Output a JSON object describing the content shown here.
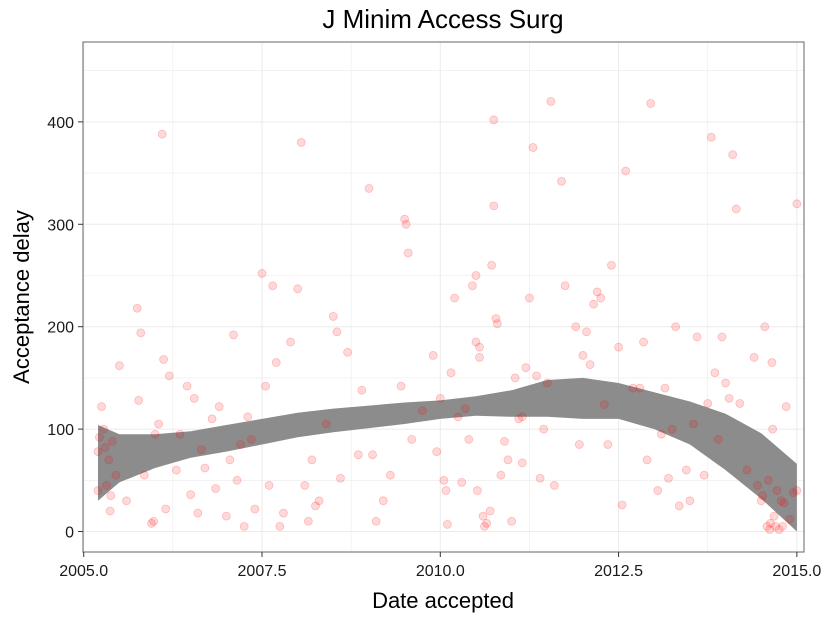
{
  "chart_data": {
    "type": "scatter",
    "title": "J Minim Access Surg",
    "xlabel": "Date accepted",
    "ylabel": "Acceptance delay",
    "xlim": [
      2004.99,
      2015.1
    ],
    "ylim": [
      -20,
      478
    ],
    "x_ticks": [
      2005.0,
      2007.5,
      2010.0,
      2012.5,
      2015.0
    ],
    "x_tick_labels": [
      "2005.0",
      "2007.5",
      "2010.0",
      "2012.5",
      "2015.0"
    ],
    "y_ticks": [
      0,
      100,
      200,
      300,
      400
    ],
    "y_tick_labels": [
      "0",
      "100",
      "200",
      "300",
      "400"
    ],
    "grid": true,
    "legend": "none",
    "colors": {
      "points": "#ff0000",
      "band": "#8c8c8c",
      "grid": "#ebebeb",
      "panel_border": "#7f7f7f",
      "axis_ticks": "#333333"
    },
    "series": [
      {
        "type": "scatter",
        "x": [
          2005.25,
          2005.22,
          2005.3,
          2005.2,
          2005.35,
          2005.28,
          2005.4,
          2005.45,
          2005.32,
          2005.2,
          2005.37,
          2005.5,
          2005.38,
          2005.6,
          2005.75,
          2005.8,
          2005.77,
          2005.85,
          2005.95,
          2005.98,
          2006.0,
          2006.05,
          2006.1,
          2006.12,
          2006.15,
          2006.2,
          2006.3,
          2006.35,
          2006.45,
          2006.5,
          2006.55,
          2006.6,
          2006.65,
          2006.7,
          2006.8,
          2006.85,
          2006.9,
          2007.0,
          2007.05,
          2007.1,
          2007.15,
          2007.2,
          2007.25,
          2007.3,
          2007.35,
          2007.4,
          2007.5,
          2007.55,
          2007.6,
          2007.65,
          2007.7,
          2007.75,
          2007.8,
          2007.9,
          2008.0,
          2008.05,
          2008.1,
          2008.15,
          2008.2,
          2008.25,
          2008.3,
          2008.4,
          2008.5,
          2008.55,
          2008.6,
          2008.7,
          2008.85,
          2008.9,
          2009.0,
          2009.05,
          2009.1,
          2009.2,
          2009.3,
          2009.45,
          2009.5,
          2009.52,
          2009.55,
          2009.6,
          2009.75,
          2009.9,
          2009.95,
          2010.0,
          2010.05,
          2010.08,
          2010.1,
          2010.15,
          2010.2,
          2010.25,
          2010.3,
          2010.35,
          2010.4,
          2010.45,
          2010.5,
          2010.5,
          2010.52,
          2010.55,
          2010.55,
          2010.6,
          2010.62,
          2010.65,
          2010.7,
          2010.72,
          2010.75,
          2010.75,
          2010.78,
          2010.8,
          2010.85,
          2010.9,
          2010.95,
          2011.0,
          2011.05,
          2011.1,
          2011.15,
          2011.15,
          2011.2,
          2011.25,
          2011.3,
          2011.35,
          2011.4,
          2011.45,
          2011.5,
          2011.55,
          2011.6,
          2011.7,
          2011.75,
          2011.9,
          2011.95,
          2012.0,
          2012.05,
          2012.1,
          2012.15,
          2012.2,
          2012.25,
          2012.3,
          2012.35,
          2012.4,
          2012.5,
          2012.55,
          2012.6,
          2012.7,
          2012.8,
          2012.85,
          2012.9,
          2012.95,
          2013.05,
          2013.1,
          2013.15,
          2013.2,
          2013.25,
          2013.3,
          2013.35,
          2013.45,
          2013.5,
          2013.55,
          2013.6,
          2013.7,
          2013.75,
          2013.8,
          2013.85,
          2013.9,
          2013.95,
          2014.0,
          2014.05,
          2014.1,
          2014.15,
          2014.2,
          2014.3,
          2014.4,
          2014.45,
          2014.5,
          2014.52,
          2014.55,
          2014.58,
          2014.6,
          2014.62,
          2014.63,
          2014.65,
          2014.66,
          2014.68,
          2014.7,
          2014.72,
          2014.75,
          2014.78,
          2014.8,
          2014.82,
          2014.85,
          2014.9,
          2014.95,
          2015.0,
          2015.0
        ],
        "y": [
          122,
          92,
          82,
          78,
          70,
          100,
          88,
          55,
          45,
          40,
          20,
          162,
          35,
          30,
          218,
          194,
          128,
          55,
          8,
          10,
          95,
          105,
          388,
          168,
          22,
          152,
          60,
          95,
          142,
          36,
          130,
          18,
          80,
          62,
          110,
          42,
          122,
          15,
          70,
          192,
          50,
          85,
          5,
          112,
          90,
          22,
          252,
          142,
          45,
          240,
          165,
          5,
          18,
          185,
          237,
          380,
          45,
          10,
          70,
          25,
          30,
          105,
          210,
          195,
          52,
          175,
          75,
          138,
          335,
          75,
          10,
          30,
          55,
          142,
          305,
          300,
          272,
          90,
          118,
          172,
          78,
          130,
          50,
          40,
          7,
          155,
          228,
          112,
          48,
          120,
          90,
          240,
          250,
          185,
          40,
          180,
          170,
          15,
          5,
          8,
          20,
          260,
          402,
          318,
          208,
          203,
          55,
          88,
          70,
          10,
          150,
          110,
          112,
          67,
          160,
          228,
          375,
          152,
          52,
          100,
          145,
          420,
          45,
          342,
          240,
          200,
          85,
          172,
          195,
          163,
          222,
          234,
          228,
          124,
          85,
          260,
          180,
          26,
          352,
          140,
          140,
          185,
          70,
          418,
          40,
          95,
          140,
          52,
          100,
          200,
          25,
          60,
          30,
          105,
          190,
          55,
          125,
          385,
          155,
          90,
          190,
          145,
          130,
          368,
          315,
          125,
          60,
          170,
          45,
          30,
          35,
          200,
          5,
          50,
          2,
          8,
          165,
          100,
          15,
          5,
          40,
          2,
          30,
          5,
          28,
          122,
          12,
          38,
          320,
          40
        ]
      },
      {
        "type": "band",
        "x": [
          2005.2,
          2005.5,
          2006.0,
          2006.5,
          2007.0,
          2007.5,
          2008.0,
          2008.5,
          2009.0,
          2009.5,
          2010.0,
          2010.5,
          2011.0,
          2011.5,
          2012.0,
          2012.5,
          2013.0,
          2013.5,
          2014.0,
          2014.5,
          2015.0
        ],
        "lower": [
          30,
          48,
          62,
          72,
          78,
          85,
          92,
          97,
          101,
          105,
          110,
          113,
          112,
          112,
          110,
          110,
          100,
          85,
          60,
          32,
          0
        ],
        "upper": [
          104,
          95,
          95,
          98,
          104,
          110,
          116,
          120,
          123,
          126,
          128,
          132,
          138,
          148,
          150,
          145,
          136,
          127,
          115,
          96,
          66
        ]
      }
    ]
  }
}
